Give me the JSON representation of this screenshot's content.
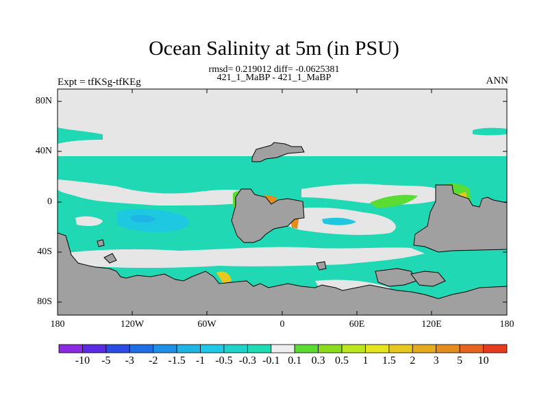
{
  "title": "Ocean Salinity at 5m (in PSU)",
  "stats": "rmsd= 0.219012 diff= -0.0625381",
  "cases": "421_1_MaBP - 421_1_MaBP",
  "left_label": "Expt = tfKSg-tfKEg",
  "right_label": "ANN",
  "y_axis": [
    "80N",
    "40N",
    "0",
    "40S",
    "80S"
  ],
  "x_axis": [
    "180",
    "120W",
    "60W",
    "0",
    "60E",
    "120E",
    "180"
  ],
  "colorbar": {
    "colors": [
      "#8a2be2",
      "#5a2be2",
      "#2b4be2",
      "#1e6ee6",
      "#1e90e6",
      "#1eb4e6",
      "#1ec8e6",
      "#20d2c8",
      "#20dcb4",
      "#eeeeee",
      "#5adc32",
      "#8cdc1e",
      "#bee61e",
      "#e6e61e",
      "#e6c81e",
      "#e6aa1e",
      "#e68c1e",
      "#e6641e",
      "#e63c1e"
    ],
    "labels": [
      "-10",
      "-5",
      "-3",
      "-2",
      "-1.5",
      "-1",
      "-0.5",
      "-0.3",
      "-0.1",
      "0.1",
      "0.3",
      "0.5",
      "1",
      "1.5",
      "2",
      "3",
      "5",
      "10"
    ]
  },
  "colors": {
    "land": "#a0a0a0",
    "near_zero": "#e6e6e6",
    "fresher": "#20d2b0",
    "saltier_green": "#5adc32",
    "saltier_yellow": "#e6c81e",
    "saltier_orange": "#e68c1e"
  }
}
